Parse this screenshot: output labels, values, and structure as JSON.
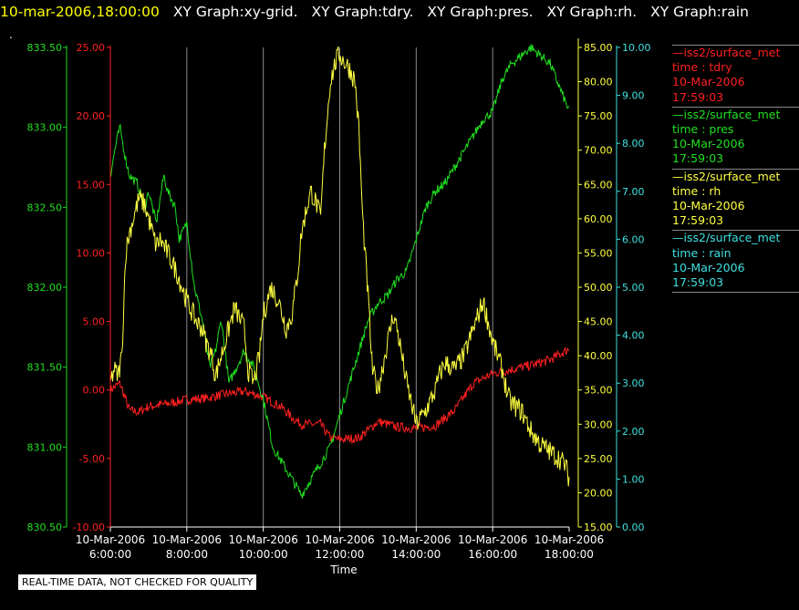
{
  "header": {
    "timestamp": "10-mar-2006,18:00:00",
    "graphs": [
      "XY Graph:xy-grid.",
      "XY Graph:tdry.",
      "XY Graph:pres.",
      "XY Graph:rh.",
      "XY Graph:rain"
    ]
  },
  "corner_mark": ".",
  "quality_note": "REAL-TIME DATA, NOT CHECKED FOR QUALITY",
  "legend": [
    {
      "line": "—iss2/surface_met",
      "field": "time : tdry",
      "date": "10-Mar-2006",
      "time": "17:59:03",
      "color": "#ff2020"
    },
    {
      "line": "—iss2/surface_met",
      "field": "time : pres",
      "date": "10-Mar-2006",
      "time": "17:59:03",
      "color": "#20e020"
    },
    {
      "line": "—iss2/surface_met",
      "field": "time : rh",
      "date": "10-Mar-2006",
      "time": "17:59:03",
      "color": "#ffff40"
    },
    {
      "line": "—iss2/surface_met",
      "field": "time : rain",
      "date": "10-Mar-2006",
      "time": "17:59:03",
      "color": "#40e0e0"
    }
  ],
  "chart_data": {
    "type": "line",
    "xlabel": "Time",
    "x_ticks": [
      {
        "date": "10-Mar-2006",
        "time": "6:00:00",
        "hour": 6
      },
      {
        "date": "10-Mar-2006",
        "time": "8:00:00",
        "hour": 8
      },
      {
        "date": "10-Mar-2006",
        "time": "10:00:00",
        "hour": 10
      },
      {
        "date": "10-Mar-2006",
        "time": "12:00:00",
        "hour": 12
      },
      {
        "date": "10-Mar-2006",
        "time": "14:00:00",
        "hour": 14
      },
      {
        "date": "10-Mar-2006",
        "time": "16:00:00",
        "hour": 16
      },
      {
        "date": "10-Mar-2006",
        "time": "18:00:00",
        "hour": 18
      }
    ],
    "xlim": [
      6,
      18
    ],
    "grid": "vertical",
    "axes": [
      {
        "id": "tdry",
        "color": "#ff2020",
        "ylim": [
          -10,
          25
        ],
        "ticks": [
          "-10.00",
          "-5.00",
          "0.00",
          "5.00",
          "10.00",
          "15.00",
          "20.00",
          "25.00"
        ]
      },
      {
        "id": "pres",
        "color": "#20e020",
        "ylim": [
          830.5,
          833.5
        ],
        "ticks": [
          "830.50",
          "831.00",
          "831.50",
          "832.00",
          "832.50",
          "833.00",
          "833.50"
        ]
      },
      {
        "id": "rh",
        "color": "#ffff40",
        "ylim": [
          15,
          85
        ],
        "ticks": [
          "15.00",
          "20.00",
          "25.00",
          "30.00",
          "35.00",
          "40.00",
          "45.00",
          "50.00",
          "55.00",
          "60.00",
          "65.00",
          "70.00",
          "75.00",
          "80.00",
          "85.00"
        ]
      },
      {
        "id": "rain",
        "color": "#40e0e0",
        "ylim": [
          0,
          10
        ],
        "ticks": [
          "0.00",
          "1.00",
          "2.00",
          "3.00",
          "4.00",
          "5.00",
          "6.00",
          "7.00",
          "8.00",
          "9.00",
          "10.00"
        ]
      }
    ],
    "series": [
      {
        "axis": "tdry",
        "color": "#ff2020",
        "x": [
          6.0,
          6.25,
          6.5,
          6.75,
          7.0,
          7.5,
          8.0,
          8.5,
          9.0,
          9.5,
          10.0,
          10.5,
          10.75,
          11.0,
          11.5,
          11.75,
          12.0,
          12.5,
          13.0,
          13.5,
          14.0,
          14.5,
          15.0,
          15.5,
          16.0,
          16.5,
          17.0,
          17.5,
          18.0
        ],
        "y": [
          0.0,
          0.5,
          -1.5,
          -1.6,
          -1.2,
          -1.0,
          -0.7,
          -0.6,
          -0.3,
          -0.1,
          -0.5,
          -1.3,
          -2.0,
          -2.5,
          -2.5,
          -3.5,
          -3.6,
          -3.5,
          -2.3,
          -2.7,
          -2.8,
          -2.6,
          -1.5,
          0.5,
          1.2,
          1.5,
          1.8,
          2.2,
          3.0
        ]
      },
      {
        "axis": "pres",
        "color": "#20e020",
        "x": [
          6.0,
          6.15,
          6.25,
          6.4,
          6.5,
          6.7,
          6.9,
          7.0,
          7.2,
          7.4,
          7.5,
          7.7,
          7.8,
          7.9,
          8.0,
          8.2,
          8.4,
          8.6,
          8.75,
          8.9,
          9.1,
          9.3,
          9.5,
          9.75,
          10.0,
          10.25,
          10.5,
          10.75,
          11.0,
          11.25,
          11.5,
          11.75,
          12.0,
          12.25,
          12.5,
          12.75,
          13.0,
          13.25,
          13.5,
          13.75,
          14.0,
          14.25,
          14.5,
          14.75,
          15.0,
          15.25,
          15.5,
          15.75,
          16.0,
          16.25,
          16.5,
          16.75,
          17.0,
          17.25,
          17.5,
          17.75,
          18.0
        ],
        "y": [
          832.7,
          832.9,
          833.0,
          832.8,
          832.7,
          832.65,
          832.5,
          832.6,
          832.4,
          832.7,
          832.6,
          832.5,
          832.3,
          832.35,
          832.4,
          832.0,
          831.8,
          831.5,
          831.6,
          831.8,
          831.4,
          831.5,
          831.6,
          831.5,
          831.3,
          831.0,
          830.9,
          830.8,
          830.7,
          830.8,
          830.9,
          831.0,
          831.2,
          831.4,
          831.6,
          831.8,
          831.9,
          831.95,
          832.05,
          832.1,
          832.3,
          832.5,
          832.6,
          832.65,
          832.75,
          832.85,
          832.95,
          833.05,
          833.1,
          833.3,
          833.4,
          833.45,
          833.5,
          833.45,
          833.4,
          833.25,
          833.1
        ]
      },
      {
        "axis": "rh",
        "color": "#ffff40",
        "x": [
          6.0,
          6.1,
          6.2,
          6.3,
          6.4,
          6.5,
          6.6,
          6.75,
          6.9,
          7.0,
          7.1,
          7.2,
          7.3,
          7.5,
          7.75,
          8.0,
          8.25,
          8.4,
          8.5,
          8.65,
          8.75,
          9.0,
          9.25,
          9.5,
          9.6,
          9.75,
          9.9,
          10.0,
          10.2,
          10.4,
          10.5,
          10.6,
          10.75,
          10.9,
          11.0,
          11.15,
          11.25,
          11.4,
          11.5,
          11.6,
          11.75,
          11.9,
          12.0,
          12.1,
          12.25,
          12.4,
          12.5,
          12.6,
          12.75,
          12.85,
          13.0,
          13.25,
          13.4,
          13.5,
          13.75,
          14.0,
          14.25,
          14.5,
          14.6,
          14.75,
          15.0,
          15.25,
          15.5,
          15.75,
          16.0,
          16.25,
          16.4,
          16.5,
          16.75,
          17.0,
          17.25,
          17.5,
          17.75,
          17.9,
          18.0
        ],
        "y": [
          36.0,
          38.0,
          37.0,
          40.0,
          55.0,
          58.0,
          60.0,
          63.0,
          62.0,
          60.0,
          58.0,
          56.0,
          57.0,
          55.0,
          52.0,
          48.0,
          45.0,
          44.0,
          42.0,
          40.0,
          37.0,
          42.0,
          47.0,
          44.0,
          38.0,
          36.0,
          40.0,
          46.0,
          50.0,
          48.0,
          46.0,
          44.0,
          46.0,
          52.0,
          58.0,
          62.0,
          64.0,
          62.0,
          60.0,
          70.0,
          80.0,
          83.0,
          84.0,
          83.0,
          82.0,
          80.0,
          73.0,
          60.0,
          48.0,
          38.0,
          35.0,
          42.0,
          46.0,
          44.0,
          36.0,
          30.0,
          32.0,
          35.0,
          37.0,
          39.0,
          38.0,
          40.0,
          44.0,
          48.0,
          42.0,
          38.0,
          34.0,
          33.0,
          32.0,
          29.0,
          27.0,
          26.0,
          25.0,
          24.0,
          22.0
        ]
      },
      {
        "axis": "rain",
        "color": "#40e0e0",
        "x": [
          6.0,
          18.0
        ],
        "y": [
          0.0,
          0.0
        ]
      }
    ]
  }
}
